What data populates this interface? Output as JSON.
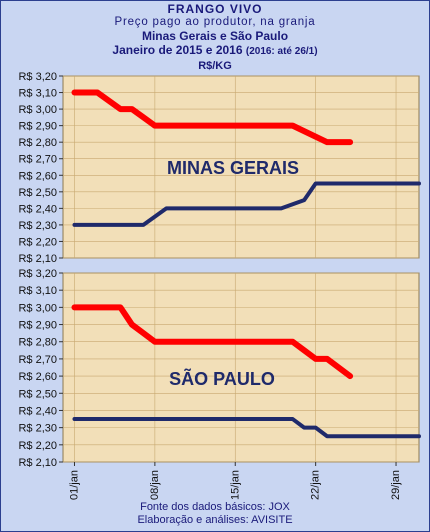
{
  "header": {
    "line1": "FRANGO VIVO",
    "line2": "Preço pago ao produtor, na granja",
    "line3": "Minas Gerais e São Paulo",
    "line4_main": "Janeiro de 2015 e 2016",
    "line4_note": "(2016: até 26/1)",
    "unit": "R$/KG"
  },
  "footer": {
    "source": "Fonte dos dados básicos: JOX",
    "credits": "Elaboração e análises: AVISITE"
  },
  "colors": {
    "series_2015": "#ff0000",
    "series_2016": "#1f2a6b",
    "plot_bg": "#f2dfb8",
    "frame_bg": "#c9d6f2",
    "gridline": "#c8a870"
  },
  "chart_data": [
    {
      "type": "line",
      "title": "MINAS GERAIS",
      "x_ticks": [
        "01/jan",
        "08/jan",
        "15/jan",
        "22/jan",
        "29/jan"
      ],
      "y_ticks": [
        "R$ 2,10",
        "R$ 2,20",
        "R$ 2,30",
        "R$ 2,40",
        "R$ 2,50",
        "R$ 2,60",
        "R$ 2,70",
        "R$ 2,80",
        "R$ 2,90",
        "R$ 3,00",
        "R$ 3,10",
        "R$ 3,20"
      ],
      "ylim": [
        2.1,
        3.2
      ],
      "xlim": [
        0,
        31
      ],
      "grid": true,
      "series": [
        {
          "color_key": "series_2015",
          "x": [
            1,
            3,
            5,
            6,
            7,
            8,
            20,
            23,
            25
          ],
          "y": [
            3.1,
            3.1,
            3.0,
            3.0,
            2.95,
            2.9,
            2.9,
            2.8,
            2.8
          ]
        },
        {
          "color_key": "series_2016",
          "x": [
            1,
            7,
            8,
            9,
            19,
            21,
            22,
            24,
            31
          ],
          "y": [
            2.3,
            2.3,
            2.35,
            2.4,
            2.4,
            2.45,
            2.55,
            2.55,
            2.55
          ]
        }
      ]
    },
    {
      "type": "line",
      "title": "SÃO PAULO",
      "x_ticks": [
        "01/jan",
        "08/jan",
        "15/jan",
        "22/jan",
        "29/jan"
      ],
      "y_ticks": [
        "R$ 2,10",
        "R$ 2,20",
        "R$ 2,30",
        "R$ 2,40",
        "R$ 2,50",
        "R$ 2,60",
        "R$ 2,70",
        "R$ 2,80",
        "R$ 2,90",
        "R$ 3,00",
        "R$ 3,10",
        "R$ 3,20"
      ],
      "ylim": [
        2.1,
        3.2
      ],
      "xlim": [
        0,
        31
      ],
      "grid": true,
      "series": [
        {
          "color_key": "series_2015",
          "x": [
            1,
            5,
            6,
            7,
            8,
            20,
            21,
            22,
            23,
            25
          ],
          "y": [
            3.0,
            3.0,
            2.9,
            2.85,
            2.8,
            2.8,
            2.75,
            2.7,
            2.7,
            2.6
          ]
        },
        {
          "color_key": "series_2016",
          "x": [
            1,
            20,
            21,
            22,
            23,
            31
          ],
          "y": [
            2.35,
            2.35,
            2.3,
            2.3,
            2.25,
            2.25
          ]
        }
      ]
    }
  ]
}
